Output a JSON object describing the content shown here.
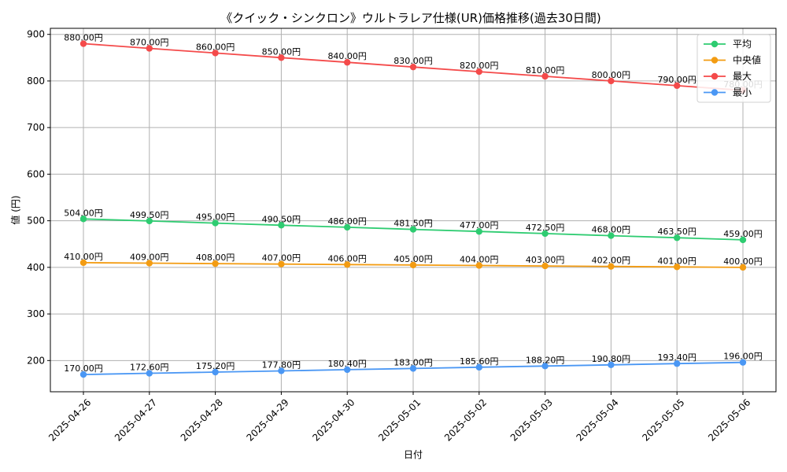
{
  "chart_data": {
    "type": "line",
    "title": "《クイック・シンクロン》ウルトラレア仕様(UR)価格推移(過去30日間)",
    "xlabel": "日付",
    "ylabel": "値 (円)",
    "ylim": [
      133,
      913
    ],
    "yticks": [
      200,
      300,
      400,
      500,
      600,
      700,
      800,
      900
    ],
    "grid": true,
    "legend_position": "top-right",
    "label_suffix": "円",
    "x": [
      "2025-04-26",
      "2025-04-27",
      "2025-04-28",
      "2025-04-29",
      "2025-04-30",
      "2025-05-01",
      "2025-05-02",
      "2025-05-03",
      "2025-05-04",
      "2025-05-05",
      "2025-05-06"
    ],
    "series": [
      {
        "name": "平均",
        "color": "#2ecc71",
        "values": [
          504.0,
          499.5,
          495.0,
          490.5,
          486.0,
          481.5,
          477.0,
          472.5,
          468.0,
          463.5,
          459.0
        ]
      },
      {
        "name": "中央値",
        "color": "#f39c12",
        "values": [
          410.0,
          409.0,
          408.0,
          407.0,
          406.0,
          405.0,
          404.0,
          403.0,
          402.0,
          401.0,
          400.0
        ]
      },
      {
        "name": "最大",
        "color": "#f44a4a",
        "values": [
          880.0,
          870.0,
          860.0,
          850.0,
          840.0,
          830.0,
          820.0,
          810.0,
          800.0,
          790.0,
          780.0
        ]
      },
      {
        "name": "最小",
        "color": "#4a97f4",
        "values": [
          170.0,
          172.6,
          175.2,
          177.8,
          180.4,
          183.0,
          185.6,
          188.2,
          190.8,
          193.4,
          196.0
        ]
      }
    ]
  }
}
